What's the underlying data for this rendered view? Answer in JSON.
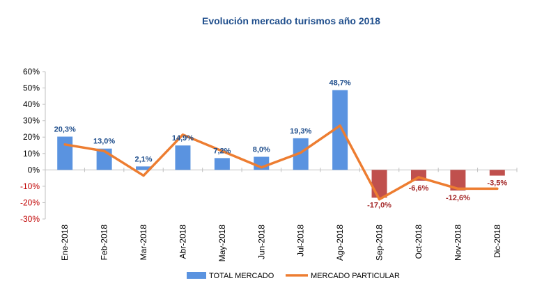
{
  "chart_data": {
    "type": "bar",
    "title": "Evolución mercado turismos año 2018",
    "categories": [
      "Ene-2018",
      "Feb-2018",
      "Mar-2018",
      "Abr-2018",
      "May-2018",
      "Jun-2018",
      "Jul-2018",
      "Ago-2018",
      "Sep-2018",
      "Oct-2018",
      "Nov-2018",
      "Dic-2018"
    ],
    "ylim": [
      -30,
      60
    ],
    "yticks": [
      60,
      50,
      40,
      30,
      20,
      10,
      0,
      -10,
      -20,
      -30
    ],
    "ytick_labels": [
      "60%",
      "50%",
      "40%",
      "30%",
      "20%",
      "10%",
      "0%",
      "-10%",
      "-20%",
      "-30%"
    ],
    "grid": false,
    "legend_position": "bottom",
    "series": [
      {
        "name": "TOTAL MERCADO",
        "type": "bar",
        "values": [
          20.3,
          13.0,
          2.1,
          14.9,
          7.2,
          8.0,
          19.3,
          48.7,
          -17.0,
          -6.6,
          -12.6,
          -3.5
        ],
        "labels": [
          "20,3%",
          "13,0%",
          "2,1%",
          "14,9%",
          "7,2%",
          "8,0%",
          "19,3%",
          "48,7%",
          "-17,0%",
          "-6,6%",
          "-12,6%",
          "-3,5%"
        ]
      },
      {
        "name": "MERCADO PARTICULAR",
        "type": "line",
        "values": [
          15.5,
          11.5,
          -3.5,
          21.5,
          11.5,
          1.5,
          10.5,
          27.0,
          -18.0,
          -4.5,
          -11.5,
          -11.5
        ]
      }
    ],
    "colors": {
      "title": "#1f4e8c",
      "positive_bar": "#5a93e0",
      "negative_bar": "#c0504d",
      "line": "#ed7d31",
      "positive_label": "#1f4e8c",
      "negative_label": "#a52a2a",
      "negative_tick": "#c00000",
      "axis_text": "#000000"
    }
  }
}
